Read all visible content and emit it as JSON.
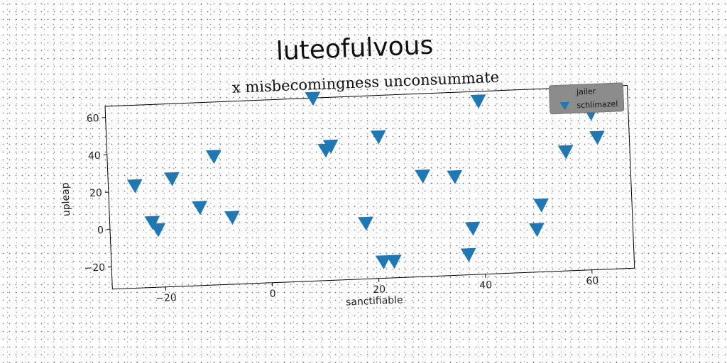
{
  "chart_data": {
    "type": "scatter",
    "title": "luteofulvous",
    "subtitle": "x misbecomingness unconsummate",
    "xlabel": "sanctifiable",
    "ylabel": "upleap",
    "xlim": [
      -30,
      68
    ],
    "ylim": [
      -32,
      66
    ],
    "xticks": [
      -20,
      0,
      20,
      40,
      60
    ],
    "xtick_labels": [
      "−20",
      "0",
      "20",
      "40",
      "60"
    ],
    "yticks": [
      -20,
      0,
      20,
      40,
      60
    ],
    "ytick_labels": [
      "−20",
      "0",
      "20",
      "40",
      "60"
    ],
    "grid": false,
    "legend": {
      "title": "jailer",
      "placement": "top-right",
      "entries": [
        {
          "label": "schlimazel",
          "marker": "triangle-down",
          "color": "#1f77b4"
        }
      ]
    },
    "series": [
      {
        "name": "schlimazel",
        "color": "#1f77b4",
        "marker": "triangle-down",
        "points": [
          {
            "x": -25,
            "y": 23
          },
          {
            "x": -22,
            "y": 3
          },
          {
            "x": -21,
            "y": -1
          },
          {
            "x": -18,
            "y": 26
          },
          {
            "x": -13,
            "y": 10
          },
          {
            "x": -10,
            "y": 37
          },
          {
            "x": -7,
            "y": 4
          },
          {
            "x": 9,
            "y": 66
          },
          {
            "x": 11,
            "y": 38
          },
          {
            "x": 12,
            "y": 40
          },
          {
            "x": 18,
            "y": -2
          },
          {
            "x": 21,
            "y": 44
          },
          {
            "x": 21,
            "y": -23
          },
          {
            "x": 23,
            "y": -23
          },
          {
            "x": 29,
            "y": 22
          },
          {
            "x": 35,
            "y": 21
          },
          {
            "x": 37,
            "y": -21
          },
          {
            "x": 38,
            "y": -7
          },
          {
            "x": 40,
            "y": 61
          },
          {
            "x": 50,
            "y": -9
          },
          {
            "x": 51,
            "y": 4
          },
          {
            "x": 56,
            "y": 32
          },
          {
            "x": 61,
            "y": 52
          },
          {
            "x": 62,
            "y": 39
          }
        ]
      }
    ]
  }
}
